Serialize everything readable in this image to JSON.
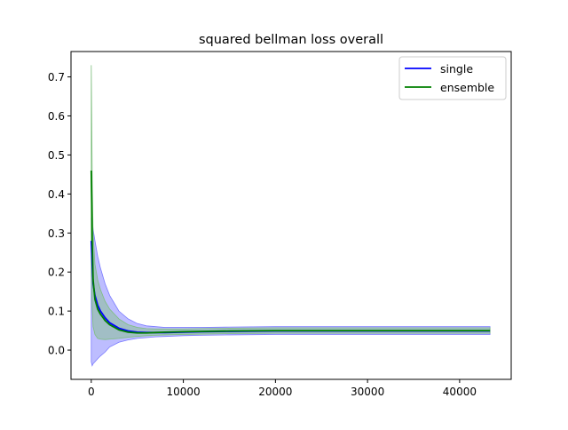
{
  "chart_data": {
    "type": "line",
    "title": "squared bellman loss overall",
    "xlabel": "",
    "ylabel": "",
    "xlim": [
      -2200,
      45600
    ],
    "ylim": [
      -0.075,
      0.765
    ],
    "xticks": [
      0,
      10000,
      20000,
      30000,
      40000
    ],
    "xtick_labels": [
      "0",
      "10000",
      "20000",
      "30000",
      "40000"
    ],
    "yticks": [
      0.0,
      0.1,
      0.2,
      0.3,
      0.4,
      0.5,
      0.6,
      0.7
    ],
    "ytick_labels": [
      "0.0",
      "0.1",
      "0.2",
      "0.3",
      "0.4",
      "0.5",
      "0.6",
      "0.7"
    ],
    "grid": false,
    "legend_position": "upper right",
    "series": [
      {
        "name": "single",
        "color": "#0000ff",
        "band_color": "#7b7bff",
        "x": [
          0,
          100,
          200,
          400,
          700,
          1000,
          1500,
          2000,
          3000,
          4000,
          5000,
          6000,
          7000,
          8000,
          10000,
          12000,
          15000,
          20000,
          25000,
          30000,
          35000,
          40000,
          43300
        ],
        "mean": [
          0.28,
          0.22,
          0.17,
          0.14,
          0.115,
          0.1,
          0.083,
          0.07,
          0.056,
          0.049,
          0.046,
          0.045,
          0.045,
          0.045,
          0.046,
          0.047,
          0.048,
          0.049,
          0.049,
          0.049,
          0.049,
          0.049,
          0.049
        ],
        "upper": [
          0.34,
          0.33,
          0.31,
          0.28,
          0.24,
          0.21,
          0.17,
          0.14,
          0.1,
          0.08,
          0.068,
          0.062,
          0.06,
          0.058,
          0.058,
          0.058,
          0.059,
          0.06,
          0.06,
          0.06,
          0.06,
          0.06,
          0.06
        ],
        "lower": [
          -0.03,
          -0.04,
          -0.035,
          -0.03,
          -0.022,
          -0.015,
          -0.005,
          0.008,
          0.02,
          0.026,
          0.03,
          0.032,
          0.034,
          0.035,
          0.037,
          0.038,
          0.039,
          0.04,
          0.04,
          0.04,
          0.04,
          0.04,
          0.04
        ]
      },
      {
        "name": "ensemble",
        "color": "#008000",
        "band_color": "#7fbf7f",
        "x": [
          0,
          50,
          100,
          200,
          400,
          700,
          1000,
          1500,
          2000,
          3000,
          4000,
          5000,
          6000,
          7000,
          8000,
          10000,
          12000,
          15000,
          20000,
          25000,
          30000,
          35000,
          40000,
          43300
        ],
        "mean": [
          0.46,
          0.38,
          0.28,
          0.18,
          0.13,
          0.105,
          0.092,
          0.076,
          0.065,
          0.052,
          0.046,
          0.044,
          0.044,
          0.045,
          0.046,
          0.047,
          0.048,
          0.049,
          0.05,
          0.05,
          0.05,
          0.05,
          0.05,
          0.05
        ],
        "upper": [
          0.73,
          0.6,
          0.45,
          0.3,
          0.22,
          0.18,
          0.155,
          0.125,
          0.105,
          0.08,
          0.065,
          0.058,
          0.055,
          0.054,
          0.054,
          0.054,
          0.055,
          0.056,
          0.057,
          0.057,
          0.057,
          0.057,
          0.057,
          0.057
        ],
        "lower": [
          0.19,
          0.16,
          0.11,
          0.06,
          0.04,
          0.03,
          0.028,
          0.027,
          0.028,
          0.03,
          0.033,
          0.035,
          0.037,
          0.038,
          0.039,
          0.04,
          0.041,
          0.042,
          0.043,
          0.043,
          0.043,
          0.043,
          0.043,
          0.043
        ]
      }
    ]
  }
}
